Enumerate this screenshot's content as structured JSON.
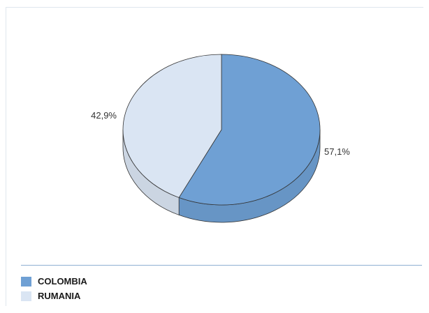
{
  "chart_data": {
    "type": "pie",
    "style": "3d",
    "categories": [
      "COLOMBIA",
      "RUMANIA"
    ],
    "values": [
      57.1,
      42.9
    ],
    "value_labels": [
      "57,1%",
      "42,9%"
    ],
    "colors": [
      "#6fa0d4",
      "#dae5f3"
    ],
    "legend": {
      "position": "bottom-left",
      "items": [
        {
          "label": "COLOMBIA",
          "color": "#6fa0d4"
        },
        {
          "label": "RUMANIA",
          "color": "#dae5f3"
        }
      ]
    }
  }
}
